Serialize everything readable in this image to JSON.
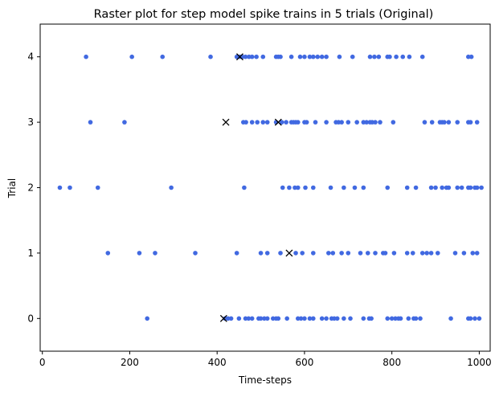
{
  "chart_data": {
    "type": "scatter",
    "title": "Raster plot for step model spike trains in 5 trials (Original)",
    "xlabel": "Time-steps",
    "ylabel": "Trial",
    "xlim": [
      -5,
      1025
    ],
    "ylim": [
      -0.5,
      4.5
    ],
    "xticks": [
      0,
      200,
      400,
      600,
      800,
      1000
    ],
    "yticks": [
      0,
      1,
      2,
      3,
      4
    ],
    "grid": false,
    "legend": "none",
    "colors": {
      "spike": "#4169e1",
      "marker": "#000000"
    },
    "series": [
      {
        "y": 0,
        "x": [
          240,
          418,
          425,
          432,
          450,
          465,
          472,
          480,
          495,
          500,
          508,
          515,
          528,
          535,
          540,
          560,
          585,
          592,
          600,
          612,
          620,
          640,
          650,
          662,
          668,
          675,
          690,
          705,
          735,
          748,
          753,
          790,
          800,
          808,
          815,
          820,
          838,
          850,
          855,
          865,
          935,
          975,
          980,
          990,
          1000
        ]
      },
      {
        "y": 1,
        "x": [
          150,
          222,
          258,
          350,
          445,
          500,
          515,
          545,
          580,
          595,
          620,
          655,
          665,
          685,
          700,
          728,
          745,
          762,
          780,
          785,
          805,
          835,
          848,
          870,
          880,
          890,
          905,
          945,
          965,
          985,
          995
        ]
      },
      {
        "y": 2,
        "x": [
          40,
          63,
          127,
          295,
          462,
          550,
          565,
          578,
          585,
          602,
          620,
          660,
          690,
          715,
          735,
          790,
          835,
          855,
          890,
          900,
          915,
          925,
          930,
          950,
          960,
          975,
          980,
          990,
          995,
          1005
        ]
      },
      {
        "y": 3,
        "x": [
          110,
          188,
          460,
          466,
          480,
          492,
          505,
          515,
          535,
          548,
          558,
          570,
          575,
          580,
          585,
          600,
          605,
          625,
          650,
          672,
          678,
          685,
          700,
          720,
          735,
          742,
          750,
          755,
          762,
          773,
          803,
          875,
          892,
          910,
          915,
          920,
          930,
          950,
          975,
          980,
          995
        ]
      },
      {
        "y": 4,
        "x": [
          100,
          205,
          275,
          385,
          445,
          452,
          458,
          465,
          473,
          480,
          490,
          505,
          535,
          540,
          545,
          570,
          590,
          600,
          612,
          620,
          630,
          640,
          650,
          680,
          710,
          750,
          760,
          770,
          790,
          795,
          810,
          825,
          840,
          870,
          975,
          982
        ]
      }
    ],
    "markers": [
      {
        "x": 415,
        "y": 0
      },
      {
        "x": 565,
        "y": 1
      },
      {
        "x": 420,
        "y": 3
      },
      {
        "x": 540,
        "y": 3
      },
      {
        "x": 452,
        "y": 4
      }
    ]
  }
}
